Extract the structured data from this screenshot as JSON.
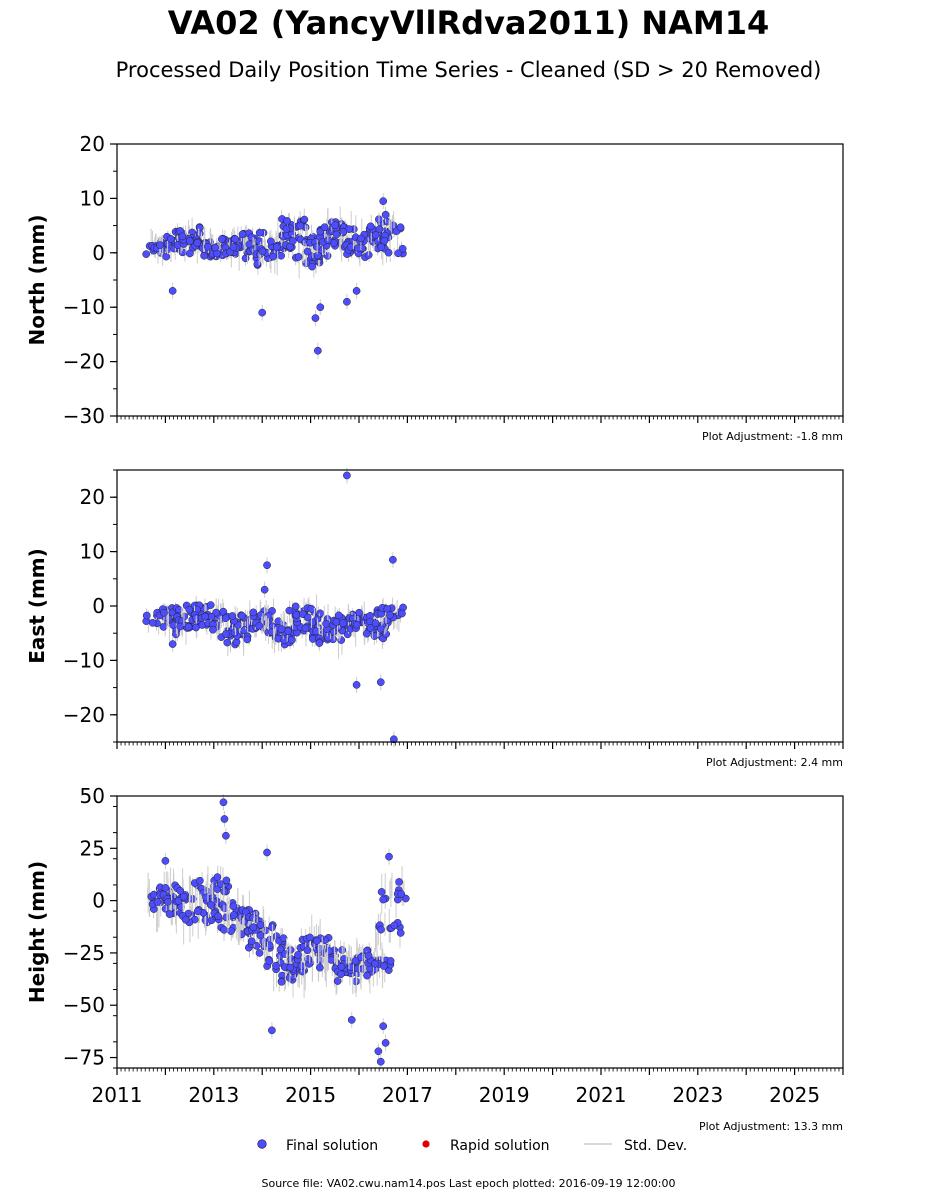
{
  "title": "VA02 (YancyVllRdva2011) NAM14",
  "subtitle": "Processed Daily Position Time Series - Cleaned (SD > 20 Removed)",
  "legend": {
    "final": "Final solution",
    "rapid": "Rapid solution",
    "std": "Std. Dev."
  },
  "colors": {
    "final": "#4d4dff",
    "rapid": "#dd0000",
    "std": "#cccccc"
  },
  "source_note": "Source file: VA02.cwu.nam14.pos  Last epoch plotted: 2016-09-19 12:00:00",
  "chart_data": [
    {
      "type": "scatter",
      "ylabel": "North (mm)",
      "xlim": [
        2011,
        2026
      ],
      "ylim": [
        -30,
        20
      ],
      "yticks": [
        20,
        10,
        0,
        -10,
        -20,
        -30
      ],
      "adjustment": "Plot Adjustment: -1.8 mm",
      "series": [
        {
          "name": "Final solution",
          "x": [
            2011.85,
            2012.0,
            2012.15,
            2012.3,
            2012.45,
            2012.6,
            2012.75,
            2012.9,
            2013.05,
            2013.2,
            2013.35,
            2013.5,
            2013.65,
            2013.8,
            2013.95,
            2014.05,
            2014.2,
            2014.35,
            2014.5,
            2014.65,
            2014.8,
            2014.95,
            2015.1,
            2015.25,
            2015.4,
            2015.55,
            2015.7,
            2015.85,
            2016.0,
            2016.15,
            2016.3,
            2016.45,
            2016.6,
            2016.7,
            2012.15,
            2014.0,
            2015.1,
            2015.15,
            2015.2,
            2015.75,
            2015.95,
            2016.5,
            2016.55
          ],
          "y": [
            1,
            1.5,
            0.5,
            2.5,
            3.5,
            2,
            1,
            1.5,
            0.5,
            1,
            2,
            0,
            1.5,
            2.5,
            1,
            -1,
            0.5,
            2,
            4,
            5,
            2,
            -2,
            0,
            2,
            3,
            5,
            4,
            1,
            0,
            2,
            3,
            5,
            4,
            1,
            -7,
            -11,
            -12,
            -18,
            -10,
            -9,
            -7,
            9.5,
            7
          ]
        }
      ]
    },
    {
      "type": "scatter",
      "ylabel": "East (mm)",
      "xlim": [
        2011,
        2026
      ],
      "ylim": [
        -25,
        25
      ],
      "yticks": [
        20,
        10,
        0,
        -10,
        -20
      ],
      "adjustment": "Plot Adjustment: 2.4 mm",
      "series": [
        {
          "name": "Final solution",
          "x": [
            2011.85,
            2012.0,
            2012.15,
            2012.3,
            2012.45,
            2012.6,
            2012.75,
            2012.9,
            2013.05,
            2013.2,
            2013.35,
            2013.5,
            2013.65,
            2013.8,
            2013.95,
            2014.05,
            2014.2,
            2014.35,
            2014.5,
            2014.65,
            2014.8,
            2014.95,
            2015.1,
            2015.25,
            2015.4,
            2015.55,
            2015.7,
            2015.85,
            2016.0,
            2016.15,
            2016.3,
            2016.45,
            2016.6,
            2016.7,
            2015.75,
            2014.1,
            2014.05,
            2015.95,
            2016.45,
            2016.7,
            2016.72,
            2012.15
          ],
          "y": [
            -2,
            -3,
            -1.5,
            -4,
            -3,
            -1,
            -2.5,
            -3,
            -1,
            -3.5,
            -6,
            -5,
            -3,
            -2,
            -3,
            -2,
            -4,
            -5,
            -6,
            -4,
            -2,
            -1,
            -3,
            -5,
            -6,
            -4,
            -3,
            -2,
            -3,
            -4,
            -5,
            -3,
            -2,
            -1,
            24,
            7.5,
            3,
            -14.5,
            -14,
            8.5,
            -24.5,
            -7
          ]
        }
      ]
    },
    {
      "type": "scatter",
      "ylabel": "Height (mm)",
      "xlim": [
        2011,
        2026
      ],
      "ylim": [
        -80,
        50
      ],
      "yticks": [
        50,
        25,
        0,
        -25,
        -50,
        -75
      ],
      "xticks": [
        2011,
        2013,
        2015,
        2017,
        2019,
        2021,
        2023,
        2025
      ],
      "adjustment": "Plot Adjustment: 13.3 mm",
      "series": [
        {
          "name": "Final solution",
          "x": [
            2011.85,
            2012.0,
            2012.15,
            2012.3,
            2012.45,
            2012.6,
            2012.75,
            2012.9,
            2013.05,
            2013.2,
            2013.35,
            2013.5,
            2013.65,
            2013.8,
            2013.95,
            2014.05,
            2014.2,
            2014.35,
            2014.5,
            2014.65,
            2014.8,
            2014.95,
            2015.1,
            2015.25,
            2015.4,
            2015.55,
            2015.7,
            2015.85,
            2016.0,
            2016.15,
            2016.3,
            2016.45,
            2016.6,
            2016.7,
            2013.2,
            2013.22,
            2013.25,
            2014.1,
            2014.2,
            2015.85,
            2016.4,
            2016.45,
            2016.5,
            2016.55,
            2016.62,
            2012.0
          ],
          "y": [
            2,
            -5,
            5,
            -3,
            3,
            -8,
            5,
            -2,
            8,
            -5,
            -12,
            -8,
            -6,
            -12,
            -18,
            -15,
            -22,
            -28,
            -32,
            -35,
            -30,
            -25,
            -20,
            -22,
            -28,
            -30,
            -35,
            -32,
            -30,
            -28,
            -32,
            -30,
            -15,
            5,
            47,
            39,
            31,
            23,
            -62,
            -57,
            -72,
            -77,
            -60,
            -68,
            21,
            19
          ]
        }
      ]
    }
  ]
}
